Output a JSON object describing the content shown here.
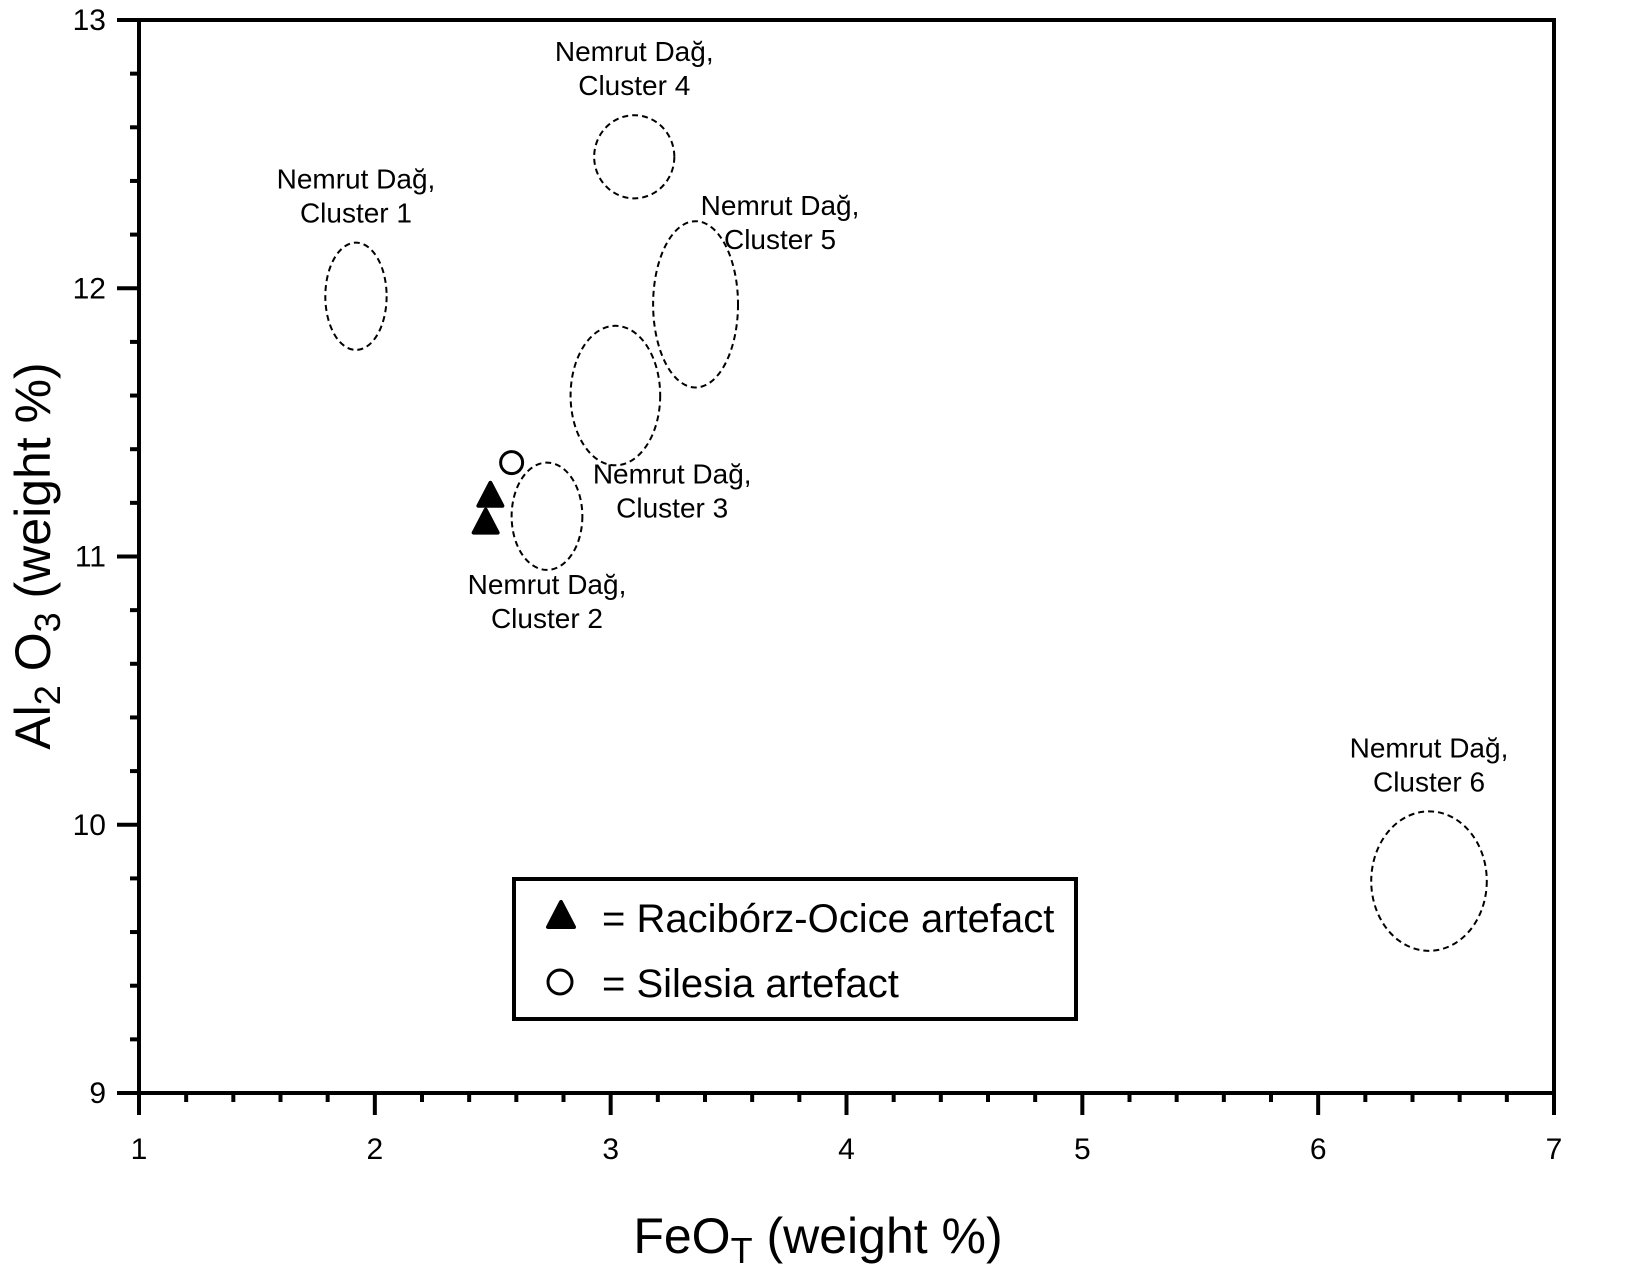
{
  "chart_data": {
    "type": "scatter",
    "xlabel": {
      "main": "FeO",
      "sub": "T",
      "rest": " (weight %)"
    },
    "ylabel": {
      "p1": "Al",
      "s1": "2",
      "p2": " O",
      "s2": "3",
      "rest": "  (weight %)"
    },
    "xlim": [
      1,
      7
    ],
    "ylim": [
      9,
      13
    ],
    "x_ticks": [
      1,
      2,
      3,
      4,
      5,
      6,
      7
    ],
    "y_ticks": [
      9,
      10,
      11,
      12,
      13
    ],
    "x_ticks_labels": [
      "1",
      "2",
      "3",
      "4",
      "5",
      "6",
      "7"
    ],
    "y_ticks_labels": [
      "9",
      "10",
      "11",
      "12",
      "13"
    ],
    "x_minor_step": 0.2,
    "y_minor_step": 0.2,
    "grid": false,
    "series": [
      {
        "name": "Racibórz-Ocice artefact",
        "marker": "filled-triangle",
        "points": [
          [
            2.49,
            11.23
          ],
          [
            2.47,
            11.13
          ]
        ]
      },
      {
        "name": "Silesia artefact",
        "marker": "open-circle",
        "points": [
          [
            2.58,
            11.35
          ]
        ]
      }
    ],
    "clusters": [
      {
        "line1": "Nemrut Dağ,",
        "line2": "Cluster 1",
        "center": [
          1.92,
          11.97
        ],
        "radii": [
          0.13,
          0.2
        ],
        "label_pos": "above"
      },
      {
        "line1": "Nemrut Dağ,",
        "line2": "Cluster 2",
        "center": [
          2.73,
          11.15
        ],
        "radii": [
          0.15,
          0.2
        ],
        "label_pos": "below"
      },
      {
        "line1": "Nemrut Dağ,",
        "line2": "Cluster 3",
        "center": [
          3.02,
          11.6
        ],
        "radii": [
          0.19,
          0.26
        ],
        "label_pos": "below-right"
      },
      {
        "line1": "Nemrut Dağ,",
        "line2": "Cluster 4",
        "center": [
          3.1,
          12.49
        ],
        "radii": [
          0.17,
          0.155
        ],
        "label_pos": "above"
      },
      {
        "line1": "Nemrut Dağ,",
        "line2": "Cluster 5",
        "center": [
          3.36,
          11.94
        ],
        "radii": [
          0.18,
          0.31
        ],
        "label_pos": "above-right"
      },
      {
        "line1": "Nemrut Dağ,",
        "line2": "Cluster 6",
        "center": [
          6.47,
          9.79
        ],
        "radii": [
          0.245,
          0.26
        ],
        "label_pos": "above"
      }
    ],
    "legend": {
      "position": "bottom-center",
      "items": [
        {
          "marker": "filled-triangle",
          "text": "= Racibórz-Ocice artefact"
        },
        {
          "marker": "open-circle",
          "text": "= Silesia artefact"
        }
      ]
    }
  }
}
